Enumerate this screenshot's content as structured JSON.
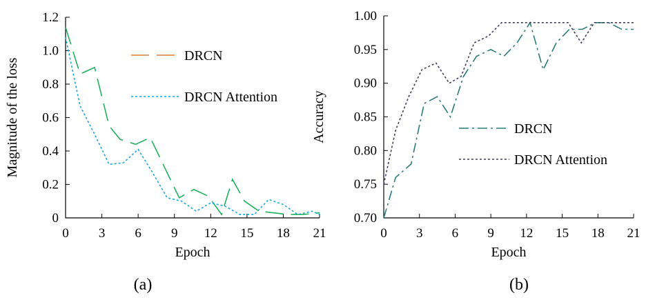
{
  "chart_data": [
    {
      "type": "line",
      "caption": "(a)",
      "xlabel": "Epoch",
      "ylabel": "Magnitude of the loss",
      "xlim": [
        0,
        21
      ],
      "ylim": [
        0,
        1.2
      ],
      "xticks": [
        "0",
        "3",
        "6",
        "9",
        "12",
        "15",
        "18",
        "21"
      ],
      "yticks": [
        "0",
        "0.2",
        "0.4",
        "0.6",
        "0.8",
        "1.0",
        "1.2"
      ],
      "legend_position": "upper-right",
      "series": [
        {
          "name": "DRCN",
          "color": "#e07b39",
          "stroke_color": "#1fb05a",
          "dash": "dashed",
          "points": [
            [
              0,
              1.14
            ],
            [
              1.2,
              0.86
            ],
            [
              2.4,
              0.9
            ],
            [
              3.6,
              0.55
            ],
            [
              4.5,
              0.47
            ],
            [
              5.8,
              0.44
            ],
            [
              7.0,
              0.48
            ],
            [
              8.2,
              0.3
            ],
            [
              9.4,
              0.12
            ],
            [
              10.6,
              0.17
            ],
            [
              11.8,
              0.13
            ],
            [
              12.9,
              0.02
            ],
            [
              13.8,
              0.23
            ],
            [
              14.8,
              0.1
            ],
            [
              16.0,
              0.04
            ],
            [
              17.2,
              0.03
            ],
            [
              18.4,
              0.02
            ],
            [
              19.6,
              0.02
            ],
            [
              21,
              0.03
            ]
          ]
        },
        {
          "name": "DRCN Attention",
          "color": "#1aa7d8",
          "stroke_color": "#1aa7d8",
          "dash": "dotted",
          "points": [
            [
              0,
              1.08
            ],
            [
              1.2,
              0.67
            ],
            [
              2.4,
              0.5
            ],
            [
              3.6,
              0.32
            ],
            [
              4.8,
              0.33
            ],
            [
              6.0,
              0.41
            ],
            [
              7.2,
              0.27
            ],
            [
              8.4,
              0.12
            ],
            [
              9.6,
              0.1
            ],
            [
              10.8,
              0.04
            ],
            [
              12.0,
              0.09
            ],
            [
              13.2,
              0.07
            ],
            [
              14.4,
              0.02
            ],
            [
              15.6,
              0.02
            ],
            [
              16.8,
              0.11
            ],
            [
              18.0,
              0.08
            ],
            [
              19.2,
              0.02
            ],
            [
              20.4,
              0.04
            ],
            [
              21,
              0.02
            ]
          ]
        }
      ]
    },
    {
      "type": "line",
      "caption": "(b)",
      "xlabel": "Epoch",
      "ylabel": "Accuracy",
      "xlim": [
        0,
        21
      ],
      "ylim": [
        0.7,
        1.0
      ],
      "xticks": [
        "0",
        "3",
        "6",
        "9",
        "12",
        "15",
        "18",
        "21"
      ],
      "yticks": [
        "0.70",
        "0.75",
        "0.80",
        "0.85",
        "0.90",
        "0.95",
        "1.00"
      ],
      "legend_position": "center-right",
      "series": [
        {
          "name": "DRCN",
          "color": "#2a7a7a",
          "dash": "dash-dot",
          "points": [
            [
              0,
              0.7
            ],
            [
              1.0,
              0.76
            ],
            [
              2.3,
              0.78
            ],
            [
              3.4,
              0.87
            ],
            [
              4.5,
              0.88
            ],
            [
              5.6,
              0.85
            ],
            [
              6.7,
              0.91
            ],
            [
              7.8,
              0.94
            ],
            [
              9.0,
              0.95
            ],
            [
              10.1,
              0.94
            ],
            [
              11.2,
              0.96
            ],
            [
              12.3,
              0.99
            ],
            [
              13.4,
              0.92
            ],
            [
              14.5,
              0.96
            ],
            [
              15.6,
              0.98
            ],
            [
              16.7,
              0.98
            ],
            [
              17.8,
              0.99
            ],
            [
              18.9,
              0.99
            ],
            [
              20.0,
              0.98
            ],
            [
              21,
              0.98
            ]
          ]
        },
        {
          "name": "DRCN Attention",
          "color": "#403a5e",
          "dash": "dotted",
          "points": [
            [
              0,
              0.75
            ],
            [
              1.0,
              0.83
            ],
            [
              2.1,
              0.88
            ],
            [
              3.2,
              0.92
            ],
            [
              4.4,
              0.93
            ],
            [
              5.5,
              0.9
            ],
            [
              6.5,
              0.91
            ],
            [
              7.6,
              0.96
            ],
            [
              8.8,
              0.97
            ],
            [
              9.9,
              0.99
            ],
            [
              11.0,
              0.99
            ],
            [
              12.1,
              0.99
            ],
            [
              13.3,
              0.99
            ],
            [
              14.4,
              0.99
            ],
            [
              15.5,
              0.99
            ],
            [
              16.6,
              0.96
            ],
            [
              17.7,
              0.99
            ],
            [
              18.8,
              0.99
            ],
            [
              20.0,
              0.99
            ],
            [
              21,
              0.99
            ]
          ]
        }
      ]
    }
  ]
}
